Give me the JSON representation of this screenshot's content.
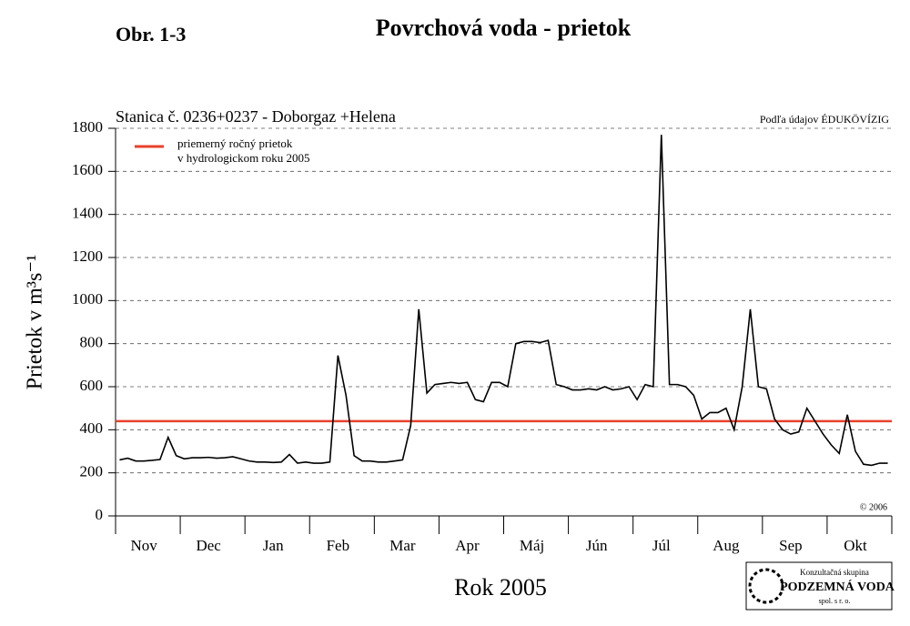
{
  "chart_data": {
    "type": "line",
    "figure_label": "Obr. 1-3",
    "title": "Povrchová voda - prietok",
    "subtitle": "Stanica č. 0236+0237 - Doborgaz +Helena",
    "source": "Podľa údajov ÉDUKÖVÍZIG",
    "copyright": "© 2006",
    "y_label": "Prietok v m³s⁻¹",
    "x_label": "Rok 2005",
    "logo": {
      "line1": "Konzultačná skupina",
      "line2": "PODZEMNÁ VODA",
      "line3": "spol. s r. o."
    },
    "categories": [
      null,
      null,
      null,
      "Nov",
      null,
      null,
      null,
      null,
      null,
      null,
      null,
      "Dec",
      null,
      null,
      null,
      null,
      null,
      null,
      null,
      "Jan",
      null,
      null,
      null,
      null,
      null,
      null,
      null,
      "Feb",
      null,
      null,
      null,
      null,
      null,
      null,
      null,
      "Mar",
      null,
      null,
      null,
      null,
      null,
      null,
      null,
      "Apr",
      null,
      null,
      null,
      null,
      null,
      null,
      null,
      "Máj",
      null,
      null,
      null,
      null,
      null,
      null,
      null,
      "Jún",
      null,
      null,
      null,
      null,
      null,
      null,
      null,
      "Júl",
      null,
      null,
      null,
      null,
      null,
      null,
      null,
      "Aug",
      null,
      null,
      null,
      null,
      null,
      null,
      null,
      "Sep",
      null,
      null,
      null,
      null,
      null,
      null,
      null,
      "Okt",
      null,
      null,
      null,
      null
    ],
    "series": [
      {
        "name": "prietok",
        "color": "#000000",
        "values": [
          260,
          268,
          255,
          255,
          258,
          262,
          365,
          280,
          265,
          270,
          270,
          272,
          268,
          270,
          275,
          265,
          255,
          250,
          250,
          248,
          250,
          285,
          245,
          250,
          245,
          245,
          250,
          745,
          560,
          280,
          255,
          255,
          250,
          250,
          255,
          260,
          420,
          960,
          570,
          610,
          615,
          620,
          615,
          620,
          540,
          530,
          620,
          620,
          600,
          800,
          810,
          810,
          805,
          815,
          610,
          600,
          585,
          585,
          590,
          585,
          600,
          585,
          590,
          600,
          540,
          610,
          600,
          1770,
          610,
          610,
          600,
          560,
          450,
          480,
          480,
          500,
          400,
          600,
          960,
          600,
          590,
          450,
          400,
          380,
          390,
          500,
          440,
          380,
          330,
          290,
          470,
          300,
          240,
          235,
          245,
          245
        ]
      }
    ],
    "mean_line": {
      "value": 440,
      "color": "#e8412c",
      "label_line1": "priemerný ročný prietok",
      "label_line2": "v hydrologickom roku 2005"
    },
    "ylim": [
      0,
      1800
    ],
    "yticks": [
      0,
      200,
      400,
      600,
      800,
      1000,
      1200,
      1400,
      1600,
      1800
    ],
    "grid": true
  }
}
